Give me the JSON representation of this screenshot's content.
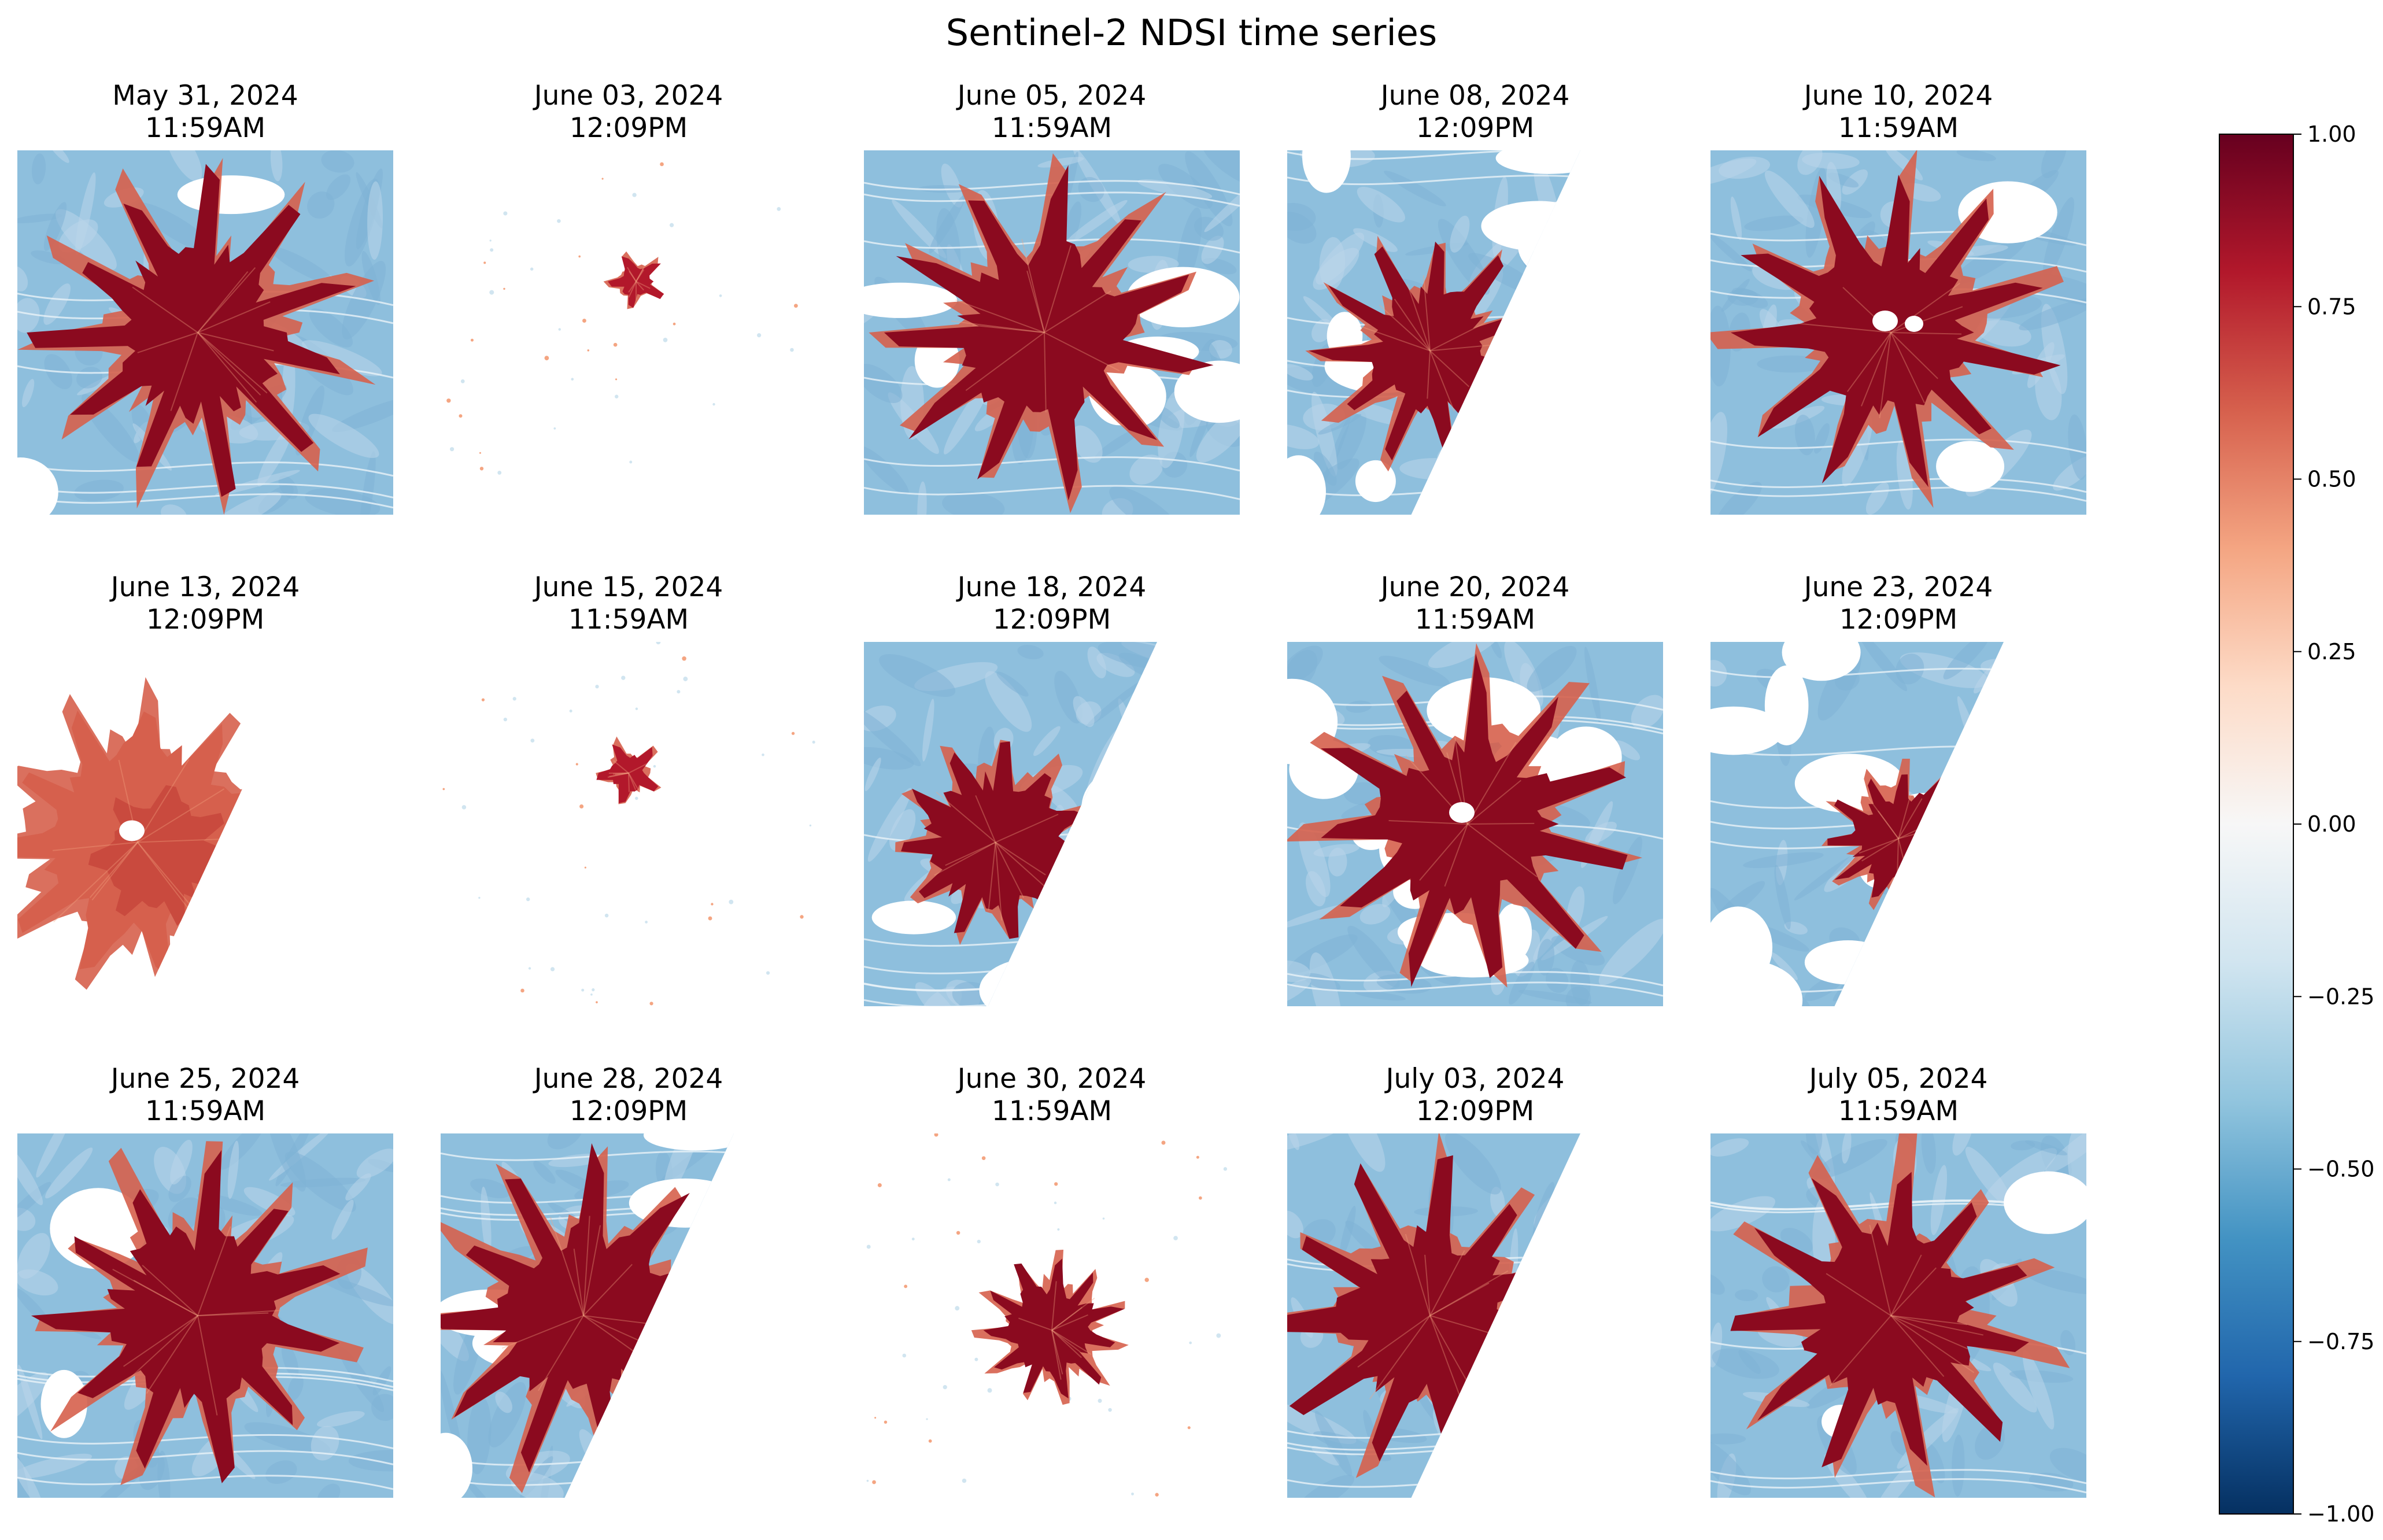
{
  "figure": {
    "title": "Sentinel-2 NDSI time series"
  },
  "panels": [
    {
      "date": "May 31, 2024",
      "time": "11:59AM",
      "coverage": "full",
      "snow": "extensive",
      "clouds": "few"
    },
    {
      "date": "June 03, 2024",
      "time": "12:09PM",
      "coverage": "masked",
      "snow": "tiny-red-patch",
      "clouds": "mostly-masked"
    },
    {
      "date": "June 05, 2024",
      "time": "11:59AM",
      "coverage": "full",
      "snow": "extensive",
      "clouds": "some"
    },
    {
      "date": "June 08, 2024",
      "time": "12:09PM",
      "coverage": "partial-diagonal",
      "snow": "partial",
      "clouds": "many"
    },
    {
      "date": "June 10, 2024",
      "time": "11:59AM",
      "coverage": "full",
      "snow": "extensive",
      "clouds": "few"
    },
    {
      "date": "June 13, 2024",
      "time": "12:09PM",
      "coverage": "partial-diagonal",
      "snow": "moderate-orange",
      "clouds": "many"
    },
    {
      "date": "June 15, 2024",
      "time": "11:59AM",
      "coverage": "masked",
      "snow": "small-patch",
      "clouds": "mostly-masked"
    },
    {
      "date": "June 18, 2024",
      "time": "12:09PM",
      "coverage": "partial-diagonal",
      "snow": "central",
      "clouds": "some"
    },
    {
      "date": "June 20, 2024",
      "time": "11:59AM",
      "coverage": "full",
      "snow": "extensive",
      "clouds": "many"
    },
    {
      "date": "June 23, 2024",
      "time": "12:09PM",
      "coverage": "partial-diagonal",
      "snow": "central-small",
      "clouds": "many"
    },
    {
      "date": "June 25, 2024",
      "time": "11:59AM",
      "coverage": "full",
      "snow": "extensive",
      "clouds": "few"
    },
    {
      "date": "June 28, 2024",
      "time": "12:09PM",
      "coverage": "partial-diagonal",
      "snow": "extensive",
      "clouds": "some"
    },
    {
      "date": "June 30, 2024",
      "time": "11:59AM",
      "coverage": "masked",
      "snow": "central-small",
      "clouds": "mostly-masked"
    },
    {
      "date": "July 03, 2024",
      "time": "12:09PM",
      "coverage": "partial-diagonal",
      "snow": "extensive",
      "clouds": "few"
    },
    {
      "date": "July 05, 2024",
      "time": "11:59AM",
      "coverage": "full",
      "snow": "extensive",
      "clouds": "few"
    }
  ],
  "colorbar": {
    "colormap": "RdBu_r",
    "vmin": -1.0,
    "vmax": 1.0,
    "ticks": [
      1.0,
      0.75,
      0.5,
      0.25,
      0.0,
      -0.25,
      -0.5,
      -0.75,
      -1.0
    ],
    "tick_labels": [
      "1.00",
      "0.75",
      "0.50",
      "0.25",
      "0.00",
      "−0.25",
      "−0.50",
      "−0.75",
      "−1.00"
    ],
    "colors": [
      "#67001f",
      "#b2182b",
      "#d6604d",
      "#f4a582",
      "#fddbc7",
      "#f7f7f7",
      "#d1e5f0",
      "#92c5de",
      "#4393c3",
      "#2166ac",
      "#053061"
    ]
  },
  "palette": {
    "snow_core": "#8b0a1f",
    "snow_mid": "#b2182b",
    "snow_edge": "#d6604d",
    "snow_weak": "#f4a582",
    "land_blue": "#8ebfdd",
    "land_light": "#b9d6ea",
    "land_pale": "#d8e7f2",
    "water_dark": "#4f93c6"
  }
}
